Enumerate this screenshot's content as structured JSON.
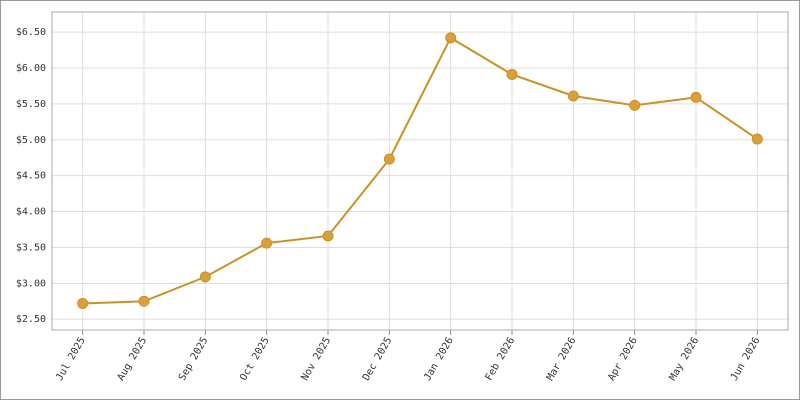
{
  "chart_data": {
    "type": "line",
    "categories": [
      "Jul 2025",
      "Aug 2025",
      "Sep 2025",
      "Oct 2025",
      "Nov 2025",
      "Dec 2025",
      "Jan 2026",
      "Feb 2026",
      "Mar 2026",
      "Apr 2026",
      "May 2026",
      "Jun 2026"
    ],
    "values": [
      2.72,
      2.75,
      3.09,
      3.56,
      3.66,
      4.73,
      6.42,
      5.91,
      5.61,
      5.48,
      5.59,
      5.01
    ],
    "color": "#c8922a",
    "marker_color": "#d9a03a",
    "ylim": [
      2.35,
      6.78
    ],
    "yticks": [
      {
        "value": 2.5,
        "label": "$2.50"
      },
      {
        "value": 3.0,
        "label": "$3.00"
      },
      {
        "value": 3.5,
        "label": "$3.50"
      },
      {
        "value": 4.0,
        "label": "$4.00"
      },
      {
        "value": 4.5,
        "label": "$4.50"
      },
      {
        "value": 5.0,
        "label": "$5.00"
      },
      {
        "value": 5.5,
        "label": "$5.50"
      },
      {
        "value": 6.0,
        "label": "$6.00"
      },
      {
        "value": 6.5,
        "label": "$6.50"
      }
    ],
    "grid": true
  }
}
